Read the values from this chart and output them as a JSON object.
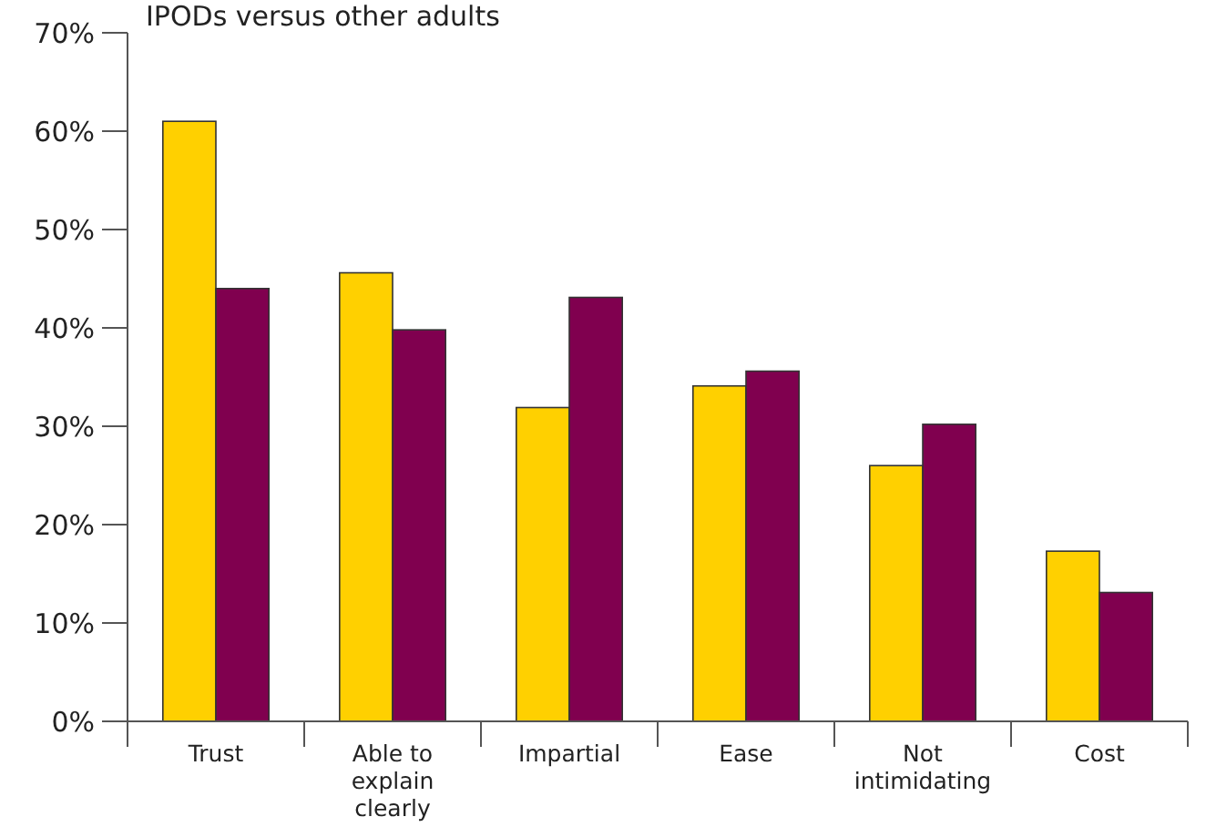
{
  "chart_data": {
    "type": "bar",
    "title": "IPODs versus other adults",
    "categories": [
      "Trust",
      "Able to explain clearly",
      "Impartial",
      "Ease",
      "Not intimidating",
      "Cost"
    ],
    "series": [
      {
        "color": "#ffd000",
        "values": [
          61,
          45.6,
          31.9,
          34.1,
          26,
          17.3
        ]
      },
      {
        "color": "#80004f",
        "values": [
          44,
          39.8,
          43.1,
          35.6,
          30.2,
          13.1
        ]
      }
    ],
    "ylim": [
      0,
      70
    ],
    "yticks": [
      {
        "value": 0,
        "label": "0%"
      },
      {
        "value": 10,
        "label": "10%"
      },
      {
        "value": 20,
        "label": "20%"
      },
      {
        "value": 30,
        "label": "30%"
      },
      {
        "value": 40,
        "label": "40%"
      },
      {
        "value": 50,
        "label": "50%"
      },
      {
        "value": 60,
        "label": "60%"
      },
      {
        "value": 70,
        "label": "70%"
      }
    ],
    "grid": false
  }
}
